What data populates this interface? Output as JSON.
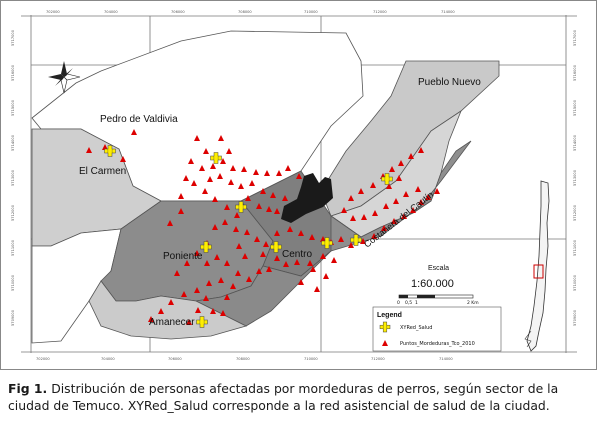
{
  "map": {
    "sectors": {
      "pueblo_nuevo": "Pueblo Nuevo",
      "pedro_de_valdivia": "Pedro de Valdivia",
      "el_carmen": "El Carmen",
      "poniente": "Poniente",
      "centro": "Centro",
      "costanera_del_cautin": "Costanera del Cautín",
      "amanecer": "Amanecer"
    },
    "scale": {
      "title": "Escala",
      "ratio": "1:60.000",
      "ticks": [
        "0",
        "0,5",
        "1",
        "2 Km"
      ]
    },
    "legend": {
      "title": "Legend",
      "items": [
        {
          "label": "XYRed_Salud",
          "symbol": "yellow-cross"
        },
        {
          "label": "Puntos_Mordeduras_Tco_2010",
          "symbol": "red-triangle"
        }
      ]
    },
    "coords": {
      "top": [
        "702000",
        "704000",
        "706000",
        "708000",
        "710000",
        "712000",
        "714000"
      ],
      "bottom": [
        "702000",
        "704000",
        "706000",
        "708000",
        "710000",
        "712000",
        "714000"
      ],
      "left": [
        "5717000",
        "5716000",
        "5715000",
        "5714000",
        "5713000",
        "5712000",
        "5711000",
        "5710000",
        "5709000"
      ],
      "right": [
        "5717000",
        "5716000",
        "5715000",
        "5714000",
        "5713000",
        "5712000",
        "5711000",
        "5710000",
        "5709000"
      ]
    },
    "colors": {
      "dark_sector": "#8c8c8c",
      "light_sector": "#cbcbcb",
      "outline": "#555555",
      "bite_points": "#dd0000",
      "health_network": "#ffee00",
      "river_area": "#1a1a1a"
    }
  },
  "caption": {
    "label": "Fig 1.",
    "text": "Distribución de personas afectadas por mordeduras de perros, según sector de la ciudad de Temuco. XYRed_Salud corresponde a la red asistencial de salud de la ciudad."
  }
}
